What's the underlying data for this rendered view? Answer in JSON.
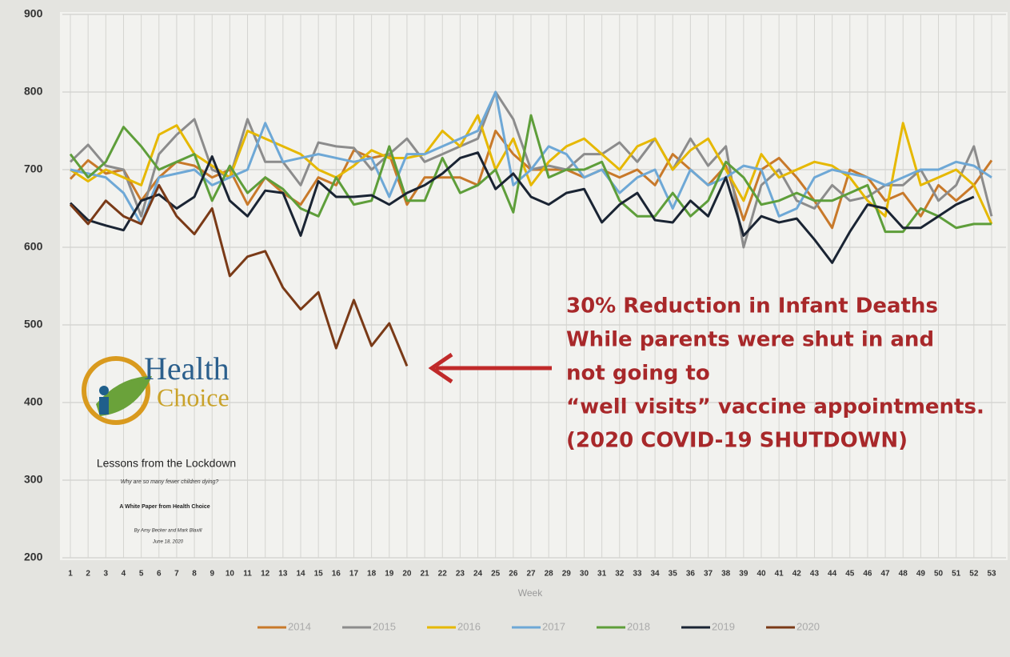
{
  "chart_data": {
    "type": "line",
    "x": [
      1,
      2,
      3,
      4,
      5,
      6,
      7,
      8,
      9,
      10,
      11,
      12,
      13,
      14,
      15,
      16,
      17,
      18,
      19,
      20,
      21,
      22,
      23,
      24,
      25,
      26,
      27,
      28,
      29,
      30,
      31,
      32,
      33,
      34,
      35,
      36,
      37,
      38,
      39,
      40,
      41,
      42,
      43,
      44,
      45,
      46,
      47,
      48,
      49,
      50,
      51,
      52,
      53
    ],
    "xlim": [
      1,
      53
    ],
    "x_label": "Week",
    "ylim": [
      200,
      900
    ],
    "yticks": [
      200,
      300,
      400,
      500,
      600,
      700,
      800,
      900
    ],
    "grid": true,
    "legend": "bottom",
    "series": [
      {
        "name": "2014",
        "color": "#c8792a",
        "values": [
          688,
          712,
          695,
          700,
          660,
          690,
          710,
          705,
          690,
          700,
          655,
          690,
          670,
          655,
          690,
          680,
          725,
          715,
          720,
          655,
          690,
          690,
          690,
          680,
          750,
          720,
          700,
          700,
          700,
          690,
          700,
          690,
          700,
          680,
          720,
          700,
          680,
          705,
          635,
          700,
          715,
          690,
          660,
          625,
          700,
          690,
          660,
          670,
          640,
          680,
          660,
          680,
          712
        ]
      },
      {
        "name": "2015",
        "color": "#8c8c8c",
        "values": [
          710,
          732,
          705,
          700,
          640,
          720,
          745,
          765,
          700,
          690,
          765,
          710,
          710,
          680,
          735,
          730,
          728,
          700,
          720,
          740,
          710,
          720,
          730,
          740,
          800,
          765,
          700,
          705,
          700,
          720,
          720,
          735,
          710,
          740,
          700,
          740,
          705,
          730,
          600,
          680,
          700,
          660,
          650,
          680,
          660,
          665,
          680,
          680,
          700,
          660,
          680,
          730,
          640
        ]
      },
      {
        "name": "2016",
        "color": "#e6b800",
        "values": [
          700,
          685,
          700,
          690,
          680,
          745,
          757,
          720,
          705,
          690,
          750,
          740,
          730,
          720,
          700,
          690,
          705,
          725,
          715,
          715,
          720,
          750,
          730,
          770,
          700,
          740,
          680,
          710,
          730,
          740,
          720,
          700,
          730,
          740,
          700,
          725,
          740,
          700,
          660,
          720,
          690,
          700,
          710,
          705,
          690,
          660,
          640,
          760,
          680,
          690,
          700,
          680,
          630
        ]
      },
      {
        "name": "2017",
        "color": "#6ea8d6",
        "values": [
          700,
          695,
          690,
          670,
          630,
          690,
          695,
          700,
          680,
          690,
          700,
          760,
          710,
          715,
          720,
          715,
          710,
          715,
          665,
          720,
          720,
          730,
          740,
          750,
          800,
          680,
          700,
          730,
          720,
          690,
          700,
          670,
          690,
          700,
          650,
          700,
          680,
          690,
          705,
          700,
          640,
          650,
          690,
          700,
          695,
          690,
          680,
          690,
          700,
          700,
          710,
          705,
          690
        ]
      },
      {
        "name": "2018",
        "color": "#5e9e3a",
        "values": [
          720,
          690,
          710,
          755,
          730,
          700,
          710,
          720,
          660,
          705,
          670,
          690,
          675,
          650,
          640,
          690,
          655,
          660,
          730,
          660,
          660,
          715,
          670,
          680,
          700,
          645,
          770,
          690,
          700,
          700,
          710,
          660,
          640,
          640,
          670,
          640,
          660,
          710,
          690,
          655,
          660,
          670,
          660,
          660,
          670,
          680,
          620,
          620,
          650,
          640,
          625,
          630,
          630
        ]
      },
      {
        "name": "2019",
        "color": "#1a2433",
        "values": [
          657,
          635,
          628,
          622,
          660,
          668,
          650,
          665,
          717,
          660,
          640,
          673,
          670,
          615,
          685,
          665,
          665,
          667,
          655,
          670,
          680,
          695,
          715,
          722,
          675,
          695,
          665,
          655,
          670,
          675,
          632,
          655,
          670,
          635,
          632,
          660,
          640,
          690,
          615,
          640,
          632,
          637,
          610,
          580,
          620,
          655,
          650,
          625,
          625,
          640,
          655,
          665,
          null
        ]
      },
      {
        "name": "2020",
        "color": "#7a3a17",
        "values": [
          655,
          630,
          660,
          640,
          630,
          680,
          640,
          617,
          650,
          563,
          588,
          595,
          548,
          520,
          542,
          470,
          532,
          473,
          502,
          447,
          null,
          null,
          null,
          null,
          null,
          null,
          null,
          null,
          null,
          null,
          null,
          null,
          null,
          null,
          null,
          null,
          null,
          null,
          null,
          null,
          null,
          null,
          null,
          null,
          null,
          null,
          null,
          null,
          null,
          null,
          null,
          null,
          null
        ]
      }
    ],
    "annotation": [
      "30% Reduction in Infant Deaths",
      "While parents were shut in and",
      "not going to",
      "“well visits” vaccine appointments.",
      "(2020 COVID-19 SHUTDOWN)"
    ]
  },
  "inset": {
    "logo_line1": "Health",
    "logo_line2": "Choice",
    "title": "Lessons from the Lockdown",
    "subtitle": "Why are so many fewer children dying?",
    "kind": "A White Paper from Health Choice",
    "authors": "By Amy Becker and Mark Blaxill",
    "date": "June 18, 2020"
  }
}
